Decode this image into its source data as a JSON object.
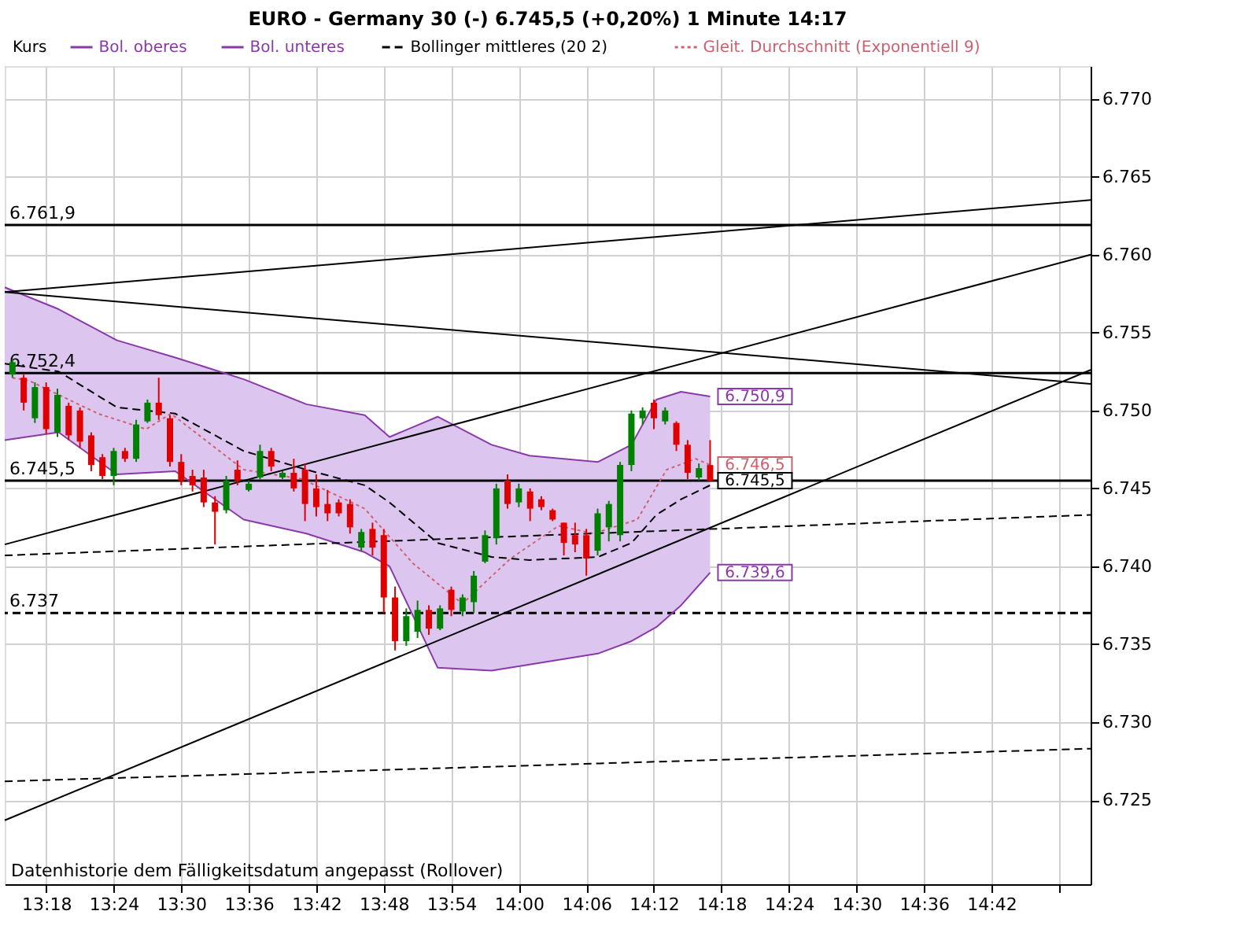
{
  "chart_data": {
    "type": "candlestick",
    "title": "EURO - Germany 30 (-)   6.745,5 (+0,20%)   1 Minute  14:17",
    "legend_title": "Kurs",
    "legend": "top",
    "grid": true,
    "xlim": [
      13.2386,
      14.8468
    ],
    "ylim": [
      6719.6,
      6772.1
    ],
    "xticks": [
      {
        "value": 13.3,
        "label": "13:18"
      },
      {
        "value": 13.4,
        "label": "13:24"
      },
      {
        "value": 13.5,
        "label": "13:30"
      },
      {
        "value": 13.6,
        "label": "13:36"
      },
      {
        "value": 13.7,
        "label": "13:42"
      },
      {
        "value": 13.8,
        "label": "13:48"
      },
      {
        "value": 13.9,
        "label": "13:54"
      },
      {
        "value": 14.0,
        "label": "14:00"
      },
      {
        "value": 14.1,
        "label": "14:06"
      },
      {
        "value": 14.2,
        "label": "14:12"
      },
      {
        "value": 14.3,
        "label": "14:18"
      },
      {
        "value": 14.4,
        "label": "14:24"
      },
      {
        "value": 14.5,
        "label": "14:30"
      },
      {
        "value": 14.6,
        "label": "14:36"
      },
      {
        "value": 14.7,
        "label": "14:42"
      },
      {
        "value": 14.8,
        "label": null
      }
    ],
    "yticks": [
      {
        "value": 6725,
        "label": "6.725"
      },
      {
        "value": 6730,
        "label": "6.730"
      },
      {
        "value": 6735,
        "label": "6.735"
      },
      {
        "value": 6740,
        "label": "6.740"
      },
      {
        "value": 6745,
        "label": "6.745"
      },
      {
        "value": 6750,
        "label": "6.750"
      },
      {
        "value": 6755,
        "label": "6.755"
      },
      {
        "value": 6760,
        "label": "6.760"
      },
      {
        "value": 6765,
        "label": "6.765"
      },
      {
        "value": 6770,
        "label": "6.770"
      }
    ],
    "value_labels": [
      null,
      null,
      null,
      null,
      null,
      null,
      null,
      null,
      null,
      null,
      null,
      null,
      null,
      null,
      null,
      null,
      null,
      null,
      null,
      null,
      null,
      null,
      null,
      null,
      null,
      null,
      null,
      null,
      null,
      null,
      null,
      null,
      null,
      null,
      null,
      null,
      null,
      null,
      null,
      null,
      null,
      null,
      null,
      null,
      null,
      null,
      null,
      null,
      null,
      null,
      null,
      null,
      null,
      null,
      null,
      null,
      null,
      null,
      null,
      null,
      null,
      null,
      "6.745,5"
    ],
    "x": [
      13.25,
      13.2667,
      13.2833,
      13.3,
      13.3167,
      13.3333,
      13.35,
      13.3667,
      13.3833,
      13.4,
      13.4167,
      13.4333,
      13.45,
      13.4667,
      13.4833,
      13.5,
      13.5167,
      13.5333,
      13.55,
      13.5667,
      13.5833,
      13.6,
      13.6167,
      13.6333,
      13.65,
      13.6667,
      13.6833,
      13.7,
      13.7167,
      13.7333,
      13.75,
      13.7667,
      13.7833,
      13.8,
      13.8167,
      13.8333,
      13.85,
      13.8667,
      13.8833,
      13.9,
      13.9167,
      13.9333,
      13.95,
      13.9667,
      13.9833,
      14.0,
      14.0167,
      14.0333,
      14.05,
      14.0667,
      14.0833,
      14.1,
      14.1167,
      14.1333,
      14.15,
      14.1667,
      14.1833,
      14.2,
      14.2167,
      14.2333,
      14.25,
      14.2667,
      14.2833
    ],
    "ohlc": [
      [
        6752.3,
        6753.3,
        6752.1,
        6753.1
      ],
      [
        6752.1,
        6752.3,
        6750.0,
        6750.5
      ],
      [
        6749.5,
        6751.8,
        6749.2,
        6751.5
      ],
      [
        6751.5,
        6751.8,
        6748.5,
        6748.8
      ],
      [
        6748.6,
        6751.4,
        6748.3,
        6751.0
      ],
      [
        6750.3,
        6750.5,
        6748.1,
        6748.4
      ],
      [
        6750.0,
        6750.2,
        6747.6,
        6748.0
      ],
      [
        6748.4,
        6748.6,
        6746.1,
        6746.5
      ],
      [
        6747.0,
        6747.2,
        6745.6,
        6745.8
      ],
      [
        6745.8,
        6747.6,
        6745.2,
        6747.4
      ],
      [
        6747.4,
        6747.6,
        6746.7,
        6746.9
      ],
      [
        6746.9,
        6749.4,
        6746.7,
        6749.1
      ],
      [
        6749.3,
        6750.7,
        6749.2,
        6750.5
      ],
      [
        6750.5,
        6752.1,
        6749.4,
        6749.7
      ],
      [
        6749.5,
        6749.7,
        6746.4,
        6746.7
      ],
      [
        6746.7,
        6747.2,
        6745.2,
        6745.5
      ],
      [
        6745.8,
        6746.2,
        6744.8,
        6745.2
      ],
      [
        6745.7,
        6746.2,
        6743.8,
        6744.1
      ],
      [
        6744.1,
        6744.5,
        6741.4,
        6743.5
      ],
      [
        6743.6,
        6745.8,
        6743.4,
        6745.5
      ],
      [
        6746.2,
        6746.8,
        6745.2,
        6745.5
      ],
      [
        6744.9,
        6745.5,
        6744.8,
        6745.3
      ],
      [
        6745.7,
        6747.8,
        6745.6,
        6747.4
      ],
      [
        6747.4,
        6747.6,
        6746.1,
        6746.4
      ],
      [
        6745.7,
        6746.1,
        6745.6,
        6746.0
      ],
      [
        6746.0,
        6746.9,
        6744.8,
        6745.0
      ],
      [
        6746.2,
        6746.6,
        6742.9,
        6744.0
      ],
      [
        6745.0,
        6745.9,
        6743.2,
        6743.8
      ],
      [
        6744.0,
        6744.9,
        6742.9,
        6743.4
      ],
      [
        6744.1,
        6744.3,
        6743.2,
        6743.4
      ],
      [
        6744.0,
        6744.3,
        6742.1,
        6742.5
      ],
      [
        6741.2,
        6742.4,
        6741.0,
        6742.2
      ],
      [
        6742.4,
        6742.8,
        6740.7,
        6741.2
      ],
      [
        6742.0,
        6742.4,
        6737.0,
        6738.0
      ],
      [
        6738.0,
        6738.7,
        6734.6,
        6735.2
      ],
      [
        6735.2,
        6737.3,
        6734.9,
        6736.8
      ],
      [
        6735.8,
        6737.8,
        6735.4,
        6737.2
      ],
      [
        6737.2,
        6737.5,
        6735.6,
        6736.0
      ],
      [
        6736.0,
        6737.5,
        6735.9,
        6737.3
      ],
      [
        6738.5,
        6738.7,
        6736.8,
        6737.2
      ],
      [
        6737.1,
        6738.2,
        6736.8,
        6738.0
      ],
      [
        6737.7,
        6739.7,
        6737.0,
        6739.4
      ],
      [
        6740.3,
        6742.3,
        6740.2,
        6742.0
      ],
      [
        6741.8,
        6745.3,
        6741.4,
        6745.0
      ],
      [
        6745.5,
        6745.9,
        6743.7,
        6744.0
      ],
      [
        6744.1,
        6745.3,
        6743.8,
        6745.0
      ],
      [
        6744.8,
        6745.0,
        6742.9,
        6743.7
      ],
      [
        6744.3,
        6744.5,
        6743.6,
        6743.8
      ],
      [
        6743.6,
        6743.7,
        6742.9,
        6743.0
      ],
      [
        6742.8,
        6742.8,
        6740.7,
        6741.5
      ],
      [
        6742.0,
        6742.8,
        6740.9,
        6741.4
      ],
      [
        6742.0,
        6742.4,
        6739.4,
        6740.5
      ],
      [
        6741.0,
        6743.7,
        6740.7,
        6743.4
      ],
      [
        6742.5,
        6744.2,
        6741.6,
        6744.0
      ],
      [
        6742.0,
        6746.7,
        6741.6,
        6746.5
      ],
      [
        6746.5,
        6750.0,
        6746.1,
        6749.8
      ],
      [
        6749.5,
        6750.2,
        6749.1,
        6750.0
      ],
      [
        6750.5,
        6750.7,
        6748.8,
        6749.5
      ],
      [
        6749.3,
        6750.2,
        6749.1,
        6750.0
      ],
      [
        6749.2,
        6749.3,
        6747.4,
        6747.8
      ],
      [
        6747.8,
        6748.1,
        6745.6,
        6746.0
      ],
      [
        6745.7,
        6746.6,
        6745.5,
        6746.3
      ],
      [
        6746.5,
        6748.1,
        6745.5,
        6745.5
      ]
    ],
    "colors": [
      "#008000",
      "#e00000",
      "#008000",
      "#e00000",
      "#008000",
      "#e00000",
      "#e00000",
      "#e00000",
      "#e00000",
      "#008000",
      "#e00000",
      "#008000",
      "#008000",
      "#e00000",
      "#e00000",
      "#e00000",
      "#e00000",
      "#e00000",
      "#e00000",
      "#008000",
      "#e00000",
      "#008000",
      "#008000",
      "#e00000",
      "#008000",
      "#e00000",
      "#e00000",
      "#e00000",
      "#e00000",
      "#e00000",
      "#e00000",
      "#008000",
      "#e00000",
      "#e00000",
      "#e00000",
      "#008000",
      "#008000",
      "#e00000",
      "#008000",
      "#e00000",
      "#008000",
      "#008000",
      "#008000",
      "#008000",
      "#e00000",
      "#008000",
      "#e00000",
      "#e00000",
      "#e00000",
      "#e00000",
      "#e00000",
      "#e00000",
      "#008000",
      "#008000",
      "#008000",
      "#008000",
      "#008000",
      "#e00000",
      "#008000",
      "#e00000",
      "#e00000",
      "#008000",
      "#e00000"
    ],
    "series": [
      {
        "name": "Bol. oberes",
        "type": "line",
        "line_style": "solid",
        "color": "#8a3aa8",
        "x": [
          13.2386,
          13.3184,
          13.4048,
          13.4911,
          13.5926,
          13.6854,
          13.7718,
          13.8085,
          13.8797,
          13.9596,
          14.0158,
          14.1172,
          14.1669,
          14.2036,
          14.2403,
          14.2833
        ],
        "values": [
          6757.9,
          6756.5,
          6754.5,
          6753.4,
          6752.0,
          6750.4,
          6749.7,
          6748.3,
          6749.6,
          6747.8,
          6747.1,
          6746.7,
          6747.8,
          6750.7,
          6751.2,
          6750.9
        ],
        "value_labels": [
          null,
          null,
          null,
          null,
          null,
          null,
          null,
          null,
          null,
          null,
          null,
          null,
          null,
          null,
          null,
          "6.750,9"
        ]
      },
      {
        "name": "Bol. unteres",
        "type": "line",
        "line_style": "solid",
        "color": "#8a3aa8",
        "x": [
          13.2386,
          13.3184,
          13.4048,
          13.4911,
          13.5926,
          13.6854,
          13.7718,
          13.8085,
          13.8797,
          13.9596,
          14.0158,
          14.1172,
          14.1669,
          14.2036,
          14.2403,
          14.2833
        ],
        "values": [
          6748.1,
          6748.6,
          6745.9,
          6746.1,
          6743.0,
          6742.1,
          6740.9,
          6740.0,
          6733.5,
          6733.3,
          6733.7,
          6734.4,
          6735.2,
          6736.1,
          6737.5,
          6739.6
        ],
        "value_labels": [
          null,
          null,
          null,
          null,
          null,
          null,
          null,
          null,
          null,
          null,
          null,
          null,
          null,
          null,
          null,
          "6.739,6"
        ]
      },
      {
        "name": "Bollinger mittleres (20 2)",
        "type": "line",
        "line_style": "dashed",
        "color": "#000000",
        "x": [
          13.2386,
          13.3184,
          13.4048,
          13.4911,
          13.5926,
          13.6854,
          13.7718,
          13.8085,
          13.8797,
          13.9596,
          14.0158,
          14.1172,
          14.1669,
          14.2036,
          14.2403,
          14.2833
        ],
        "values": [
          6753.0,
          6752.5,
          6750.2,
          6749.8,
          6747.4,
          6746.2,
          6745.2,
          6744.1,
          6741.5,
          6740.6,
          6740.4,
          6740.6,
          6741.5,
          6743.3,
          6744.3,
          6745.2
        ],
        "upper": [
          6757.9,
          6756.5,
          6754.5,
          6753.4,
          6752.0,
          6750.4,
          6749.7,
          6748.3,
          6749.6,
          6747.8,
          6747.1,
          6746.7,
          6747.8,
          6750.7,
          6751.2,
          6750.9
        ],
        "lower": [
          6748.1,
          6748.6,
          6745.9,
          6746.1,
          6743.0,
          6742.1,
          6740.9,
          6740.0,
          6733.5,
          6733.3,
          6733.7,
          6734.4,
          6735.2,
          6736.1,
          6737.5,
          6739.6
        ]
      },
      {
        "name": "Gleit. Durchschnitt (Exponentiell 9)",
        "type": "line",
        "line_style": "dotted",
        "color": "#d06070",
        "x": [
          13.25,
          13.2753,
          13.3767,
          13.448,
          13.4847,
          13.5926,
          13.679,
          13.7718,
          13.843,
          13.9165,
          13.9877,
          14.0589,
          14.1108,
          14.1755,
          14.2187,
          14.2619,
          14.2833
        ],
        "values": [
          6752.1,
          6751.9,
          6749.8,
          6748.8,
          6749.8,
          6746.2,
          6745.6,
          6743.7,
          6740.2,
          6737.6,
          6740.5,
          6742.6,
          6742.1,
          6743.0,
          6746.2,
          6746.9,
          6746.5
        ],
        "value_labels": [
          null,
          null,
          null,
          null,
          null,
          null,
          null,
          null,
          null,
          null,
          null,
          null,
          null,
          null,
          null,
          null,
          "6.746,5"
        ]
      },
      {
        "type": "line",
        "line_style": "solid",
        "color": "#000000",
        "x": [
          13.2386,
          14.8468
        ],
        "values": [
          6757.6,
          6763.5
        ]
      },
      {
        "type": "line",
        "line_style": "solid",
        "color": "#000000",
        "x": [
          13.2386,
          14.8468
        ],
        "values": [
          6757.6,
          6751.7
        ]
      },
      {
        "type": "line",
        "line_style": "solid",
        "color": "#000000",
        "x": [
          13.2386,
          14.8468
        ],
        "values": [
          6741.4,
          6760.0
        ]
      },
      {
        "type": "line",
        "line_style": "solid",
        "color": "#000000",
        "x": [
          13.2386,
          14.8468
        ],
        "values": [
          6723.7,
          6752.6
        ]
      },
      {
        "type": "line",
        "line_style": "dashed",
        "color": "#000000",
        "x": [
          13.2386,
          14.8468
        ],
        "values": [
          6740.7,
          6743.3
        ]
      },
      {
        "type": "line",
        "line_style": "dashed",
        "color": "#000000",
        "x": [
          13.2386,
          14.8468
        ],
        "values": [
          6726.2,
          6728.3
        ]
      }
    ],
    "ref_lines": [
      {
        "axis": "y",
        "value": 6761.9,
        "label": "6.761,9",
        "line_style": "solid"
      },
      {
        "axis": "y",
        "value": 6752.4,
        "label": "6.752,4",
        "line_style": "solid"
      },
      {
        "axis": "y",
        "value": 6745.5,
        "label": "6.745,5",
        "line_style": "solid"
      },
      {
        "axis": "y",
        "value": 6737,
        "label": "6.737",
        "line_style": "dashed"
      }
    ],
    "annotations": [
      "Datenhistorie dem Fälligkeitsdatum angepasst (Rollover)"
    ]
  }
}
